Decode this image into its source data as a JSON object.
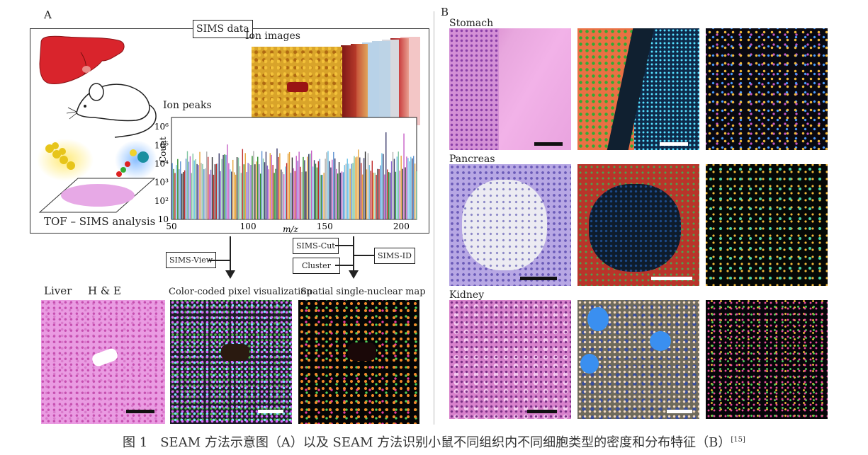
{
  "panel_a": {
    "label": "A",
    "sims_data": "SIMS data",
    "ion_images": "Ion images",
    "ion_peaks": "Ion peaks",
    "tof_sims": "TOF – SIMS analysis",
    "sims_view": "SIMS-View",
    "sims_cut": "SIMS-Cut",
    "cluster": "Cluster",
    "sims_id": "SIMS-ID",
    "liver": "Liver",
    "he": "H & E",
    "color_coded": "Color-coded pixel visualization",
    "spatial_map": "Spatial single-nuclear map"
  },
  "panel_b": {
    "label": "B",
    "stomach": "Stomach",
    "pancreas": "Pancreas",
    "kidney": "Kidney"
  },
  "chart_data": {
    "type": "bar",
    "xlabel": "m/z",
    "ylabel": "Count",
    "x_ticks": [
      "50",
      "100",
      "150",
      "200"
    ],
    "y_ticks": [
      "10",
      "10²",
      "10³",
      "10⁴",
      "10⁵",
      "10⁶"
    ],
    "xlim": [
      50,
      210
    ],
    "ylim_log10": [
      1,
      6.5
    ]
  },
  "caption": {
    "text": "图 1　SEAM 方法示意图（A）以及 SEAM 方法识别小鼠不同组织内不同细胞类型的密度和分布特征（B）",
    "ref": "[15]"
  }
}
